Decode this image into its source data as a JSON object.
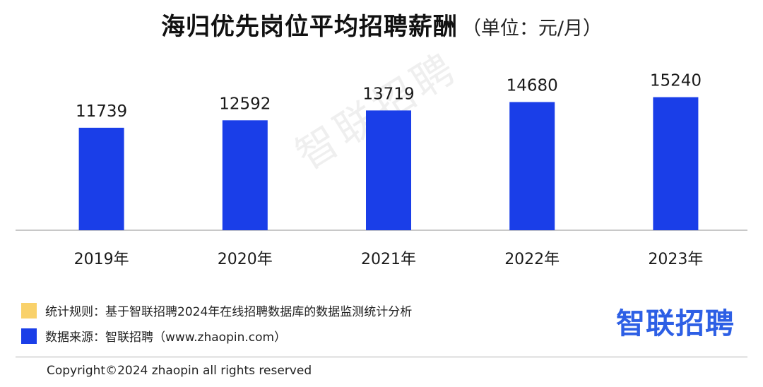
{
  "header": {
    "title": "海归优先岗位平均招聘薪酬",
    "unit": "（单位：元/月）"
  },
  "chart_data": {
    "type": "bar",
    "categories": [
      "2019年",
      "2020年",
      "2021年",
      "2022年",
      "2023年"
    ],
    "values": [
      11739,
      12592,
      13719,
      14680,
      15240
    ],
    "bar_color": "#1a3ee8",
    "grid": false
  },
  "watermark": "智联招聘",
  "legend": {
    "items": [
      {
        "color": "#f9d16a",
        "label": "统计规则：基于智联招聘2024年在线招聘数据库的数据监测统计分析"
      },
      {
        "color": "#1a3ee8",
        "label": "数据来源：智联招聘（www.zhaopin.com）"
      }
    ]
  },
  "logo": "智联招聘",
  "footer": {
    "copyright": "Copyright©2024 zhaopin all rights reserved"
  }
}
